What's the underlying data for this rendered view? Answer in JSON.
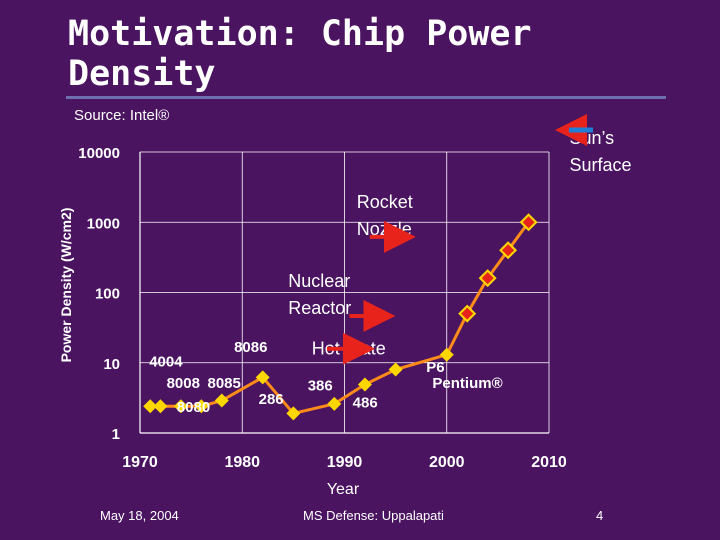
{
  "slide": {
    "title": "Motivation: Chip Power Density",
    "source": "Source: Intel®",
    "footer_date": "May 18, 2004",
    "footer_center": "MS Defense: Uppalapati",
    "page_number": "4"
  },
  "colors": {
    "background": "#4a1460",
    "line": "#ff8c1a",
    "marker": "#ffd700",
    "marker_red": "#e8231b",
    "arrow": "#e8231b",
    "sun_arrow": "#1f7fd6",
    "grid": "#ffffff"
  },
  "chart_data": {
    "type": "line",
    "scale": "log-y",
    "xlabel": "Year",
    "ylabel": "Power Density (W/cm2)",
    "xlim": [
      1970,
      2010
    ],
    "ylim": [
      1,
      10000
    ],
    "x_ticks": [
      "1970",
      "1980",
      "1990",
      "2000",
      "2010"
    ],
    "y_ticks": [
      "1",
      "10",
      "100",
      "1000",
      "10000"
    ],
    "grid": true,
    "points": [
      {
        "x": 1971,
        "y": 2.4,
        "marker": "gold"
      },
      {
        "x": 1972,
        "y": 2.4,
        "marker": "gold"
      },
      {
        "x": 1974,
        "y": 2.4,
        "marker": "gold"
      },
      {
        "x": 1976,
        "y": 2.4,
        "marker": "gold"
      },
      {
        "x": 1978,
        "y": 2.9,
        "marker": "gold"
      },
      {
        "x": 1982,
        "y": 6.2,
        "marker": "gold"
      },
      {
        "x": 1985,
        "y": 1.9,
        "marker": "gold"
      },
      {
        "x": 1989,
        "y": 2.6,
        "marker": "gold"
      },
      {
        "x": 1992,
        "y": 4.9,
        "marker": "gold"
      },
      {
        "x": 1995,
        "y": 8.0,
        "marker": "gold"
      },
      {
        "x": 2000,
        "y": 13.0,
        "marker": "gold"
      },
      {
        "x": 2002,
        "y": 50,
        "marker": "red"
      },
      {
        "x": 2004,
        "y": 160,
        "marker": "red"
      },
      {
        "x": 2006,
        "y": 400,
        "marker": "red"
      },
      {
        "x": 2008,
        "y": 1000,
        "marker": "red"
      }
    ],
    "point_labels": [
      {
        "text": "4004",
        "x": 1970.9,
        "y": 8.8
      },
      {
        "text": "8008",
        "x": 1972.6,
        "y": 4.4
      },
      {
        "text": "8085",
        "x": 1976.6,
        "y": 4.4
      },
      {
        "text": "8080",
        "x": 1973.6,
        "y": 2.0
      },
      {
        "text": "8086",
        "x": 1979.2,
        "y": 14.2
      },
      {
        "text": "286",
        "x": 1981.6,
        "y": 2.6
      },
      {
        "text": "386",
        "x": 1986.4,
        "y": 4.0
      },
      {
        "text": "486",
        "x": 1990.8,
        "y": 2.3
      },
      {
        "text": "P6",
        "x": 1998.0,
        "y": 7.4
      },
      {
        "text": "Pentium®",
        "x": 1998.6,
        "y": 4.4
      }
    ],
    "annotations": [
      {
        "text": "Hot Plate",
        "x": 1986.8,
        "y": 13.0,
        "arrow_to_x": 1992.2
      },
      {
        "text": "Nuclear Reactor",
        "lines": [
          "Nuclear",
          "Reactor"
        ],
        "x": 1984.5,
        "y": 120,
        "arrow_to_x": 1994.2
      },
      {
        "text": "Rocket Nozzle",
        "lines": [
          "Rocket",
          "Nozzle"
        ],
        "x": 1991.2,
        "y": 1600,
        "arrow_to_x": 1996.2
      },
      {
        "text": "Sun’s Surface",
        "lines": [
          "Sun’s",
          "Surface"
        ],
        "x": 2012.0,
        "y": 13000,
        "arrow_to_x": 2011.8
      }
    ]
  }
}
